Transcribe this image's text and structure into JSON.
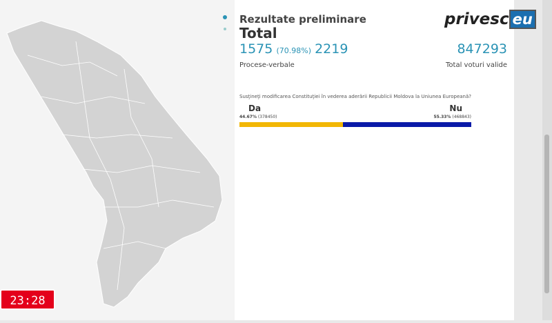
{
  "header": {
    "title": "Rezultate preliminare",
    "subtitle": "Total"
  },
  "reports": {
    "counted": "1575",
    "counted_percent": "(70.98%)",
    "total": "2219",
    "label": "Procese-verbale"
  },
  "votes": {
    "total": "847293",
    "label": "Total voturi valide"
  },
  "question": "Susţineţi modificarea Constituţiei în vederea aderării Republicii Moldova la Uniunea Europeană?",
  "results": [
    {
      "label": "Da",
      "percent": 44.67,
      "percent_label": "44.67%",
      "votes_label": "(378450)",
      "color": "#f2b705"
    },
    {
      "label": "Nu",
      "percent": 55.33,
      "percent_label": "55.33%",
      "votes_label": "(468843)",
      "color": "#0a1aa8"
    }
  ],
  "logo": {
    "text": "privesc",
    "badge": "eu"
  },
  "clock": "23:28"
}
